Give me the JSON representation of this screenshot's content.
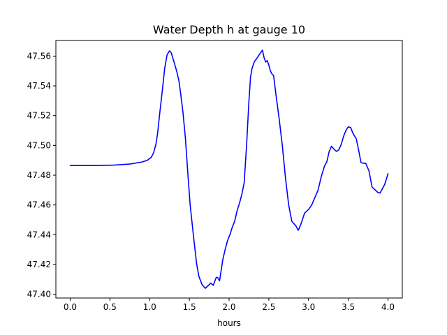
{
  "chart_data": {
    "type": "line",
    "title": "Water Depth h at gauge 10",
    "xlabel": "hours",
    "ylabel": "",
    "xlim": [
      -0.18,
      4.18
    ],
    "ylim": [
      47.3975,
      47.5705
    ],
    "x_ticks": [
      0.0,
      0.5,
      1.0,
      1.5,
      2.0,
      2.5,
      3.0,
      3.5,
      4.0
    ],
    "x_tick_labels": [
      "0.0",
      "0.5",
      "1.0",
      "1.5",
      "2.0",
      "2.5",
      "3.0",
      "3.5",
      "4.0"
    ],
    "y_ticks": [
      47.4,
      47.42,
      47.44,
      47.46,
      47.48,
      47.5,
      47.52,
      47.54,
      47.56
    ],
    "y_tick_labels": [
      "47.40",
      "47.42",
      "47.44",
      "47.46",
      "47.48",
      "47.50",
      "47.52",
      "47.54",
      "47.56"
    ],
    "grid": false,
    "series": [
      {
        "color": "#0000ff",
        "x": [
          0.0,
          0.3,
          0.55,
          0.75,
          0.9,
          0.97,
          1.02,
          1.05,
          1.08,
          1.1,
          1.13,
          1.16,
          1.19,
          1.22,
          1.25,
          1.27,
          1.29,
          1.31,
          1.34,
          1.37,
          1.39,
          1.42,
          1.45,
          1.48,
          1.51,
          1.55,
          1.59,
          1.62,
          1.66,
          1.7,
          1.74,
          1.77,
          1.8,
          1.84,
          1.86,
          1.88,
          1.9,
          1.92,
          1.95,
          1.98,
          2.01,
          2.04,
          2.07,
          2.1,
          2.13,
          2.16,
          2.19,
          2.22,
          2.25,
          2.27,
          2.29,
          2.32,
          2.35,
          2.38,
          2.4,
          2.42,
          2.44,
          2.45,
          2.46,
          2.48,
          2.5,
          2.52,
          2.54,
          2.56,
          2.59,
          2.63,
          2.67,
          2.71,
          2.75,
          2.79,
          2.84,
          2.87,
          2.9,
          2.95,
          3.0,
          3.04,
          3.08,
          3.12,
          3.16,
          3.2,
          3.23,
          3.26,
          3.29,
          3.32,
          3.35,
          3.38,
          3.41,
          3.44,
          3.47,
          3.5,
          3.53,
          3.56,
          3.6,
          3.63,
          3.66,
          3.69,
          3.72,
          3.76,
          3.8,
          3.84,
          3.87,
          3.9,
          3.93,
          3.96,
          4.0
        ],
        "y": [
          47.4865,
          47.4865,
          47.4868,
          47.4875,
          47.4888,
          47.49,
          47.492,
          47.495,
          47.501,
          47.508,
          47.523,
          47.537,
          47.552,
          47.561,
          47.5635,
          47.5625,
          47.559,
          47.5555,
          47.55,
          47.543,
          47.535,
          47.522,
          47.505,
          47.482,
          47.46,
          47.44,
          47.421,
          47.412,
          47.4065,
          47.404,
          47.406,
          47.4075,
          47.406,
          47.4115,
          47.411,
          47.409,
          47.416,
          47.423,
          47.43,
          47.436,
          47.44,
          47.445,
          47.449,
          47.456,
          47.461,
          47.467,
          47.475,
          47.5,
          47.53,
          47.546,
          47.552,
          47.5565,
          47.5585,
          47.561,
          47.5625,
          47.564,
          47.559,
          47.5575,
          47.556,
          47.557,
          47.554,
          47.55,
          47.548,
          47.547,
          47.534,
          47.518,
          47.5,
          47.478,
          47.46,
          47.449,
          47.446,
          47.443,
          47.4465,
          47.4545,
          47.457,
          47.46,
          47.465,
          47.47,
          47.479,
          47.486,
          47.489,
          47.496,
          47.4995,
          47.4975,
          47.496,
          47.497,
          47.5005,
          47.506,
          47.51,
          47.5125,
          47.512,
          47.508,
          47.5045,
          47.497,
          47.4885,
          47.488,
          47.488,
          47.483,
          47.472,
          47.47,
          47.4685,
          47.468,
          47.471,
          47.474,
          47.481
        ]
      }
    ]
  }
}
